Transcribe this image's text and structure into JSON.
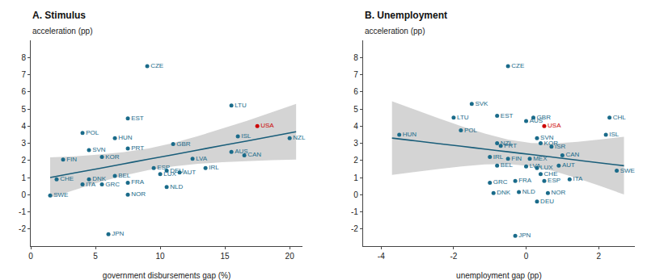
{
  "chart_data": [
    {
      "type": "scatter",
      "title": "A. Stimulus",
      "x_label": "government disbursements gap (%)",
      "y_label": "acceleration (pp)",
      "xlim": [
        0,
        21
      ],
      "ylim": [
        -3,
        9
      ],
      "xticks": [
        0,
        5,
        10,
        15,
        20
      ],
      "yticks": [
        -2,
        -1,
        0,
        1,
        2,
        3,
        4,
        5,
        6,
        7,
        8
      ],
      "grid": false,
      "labels": [
        "SWE",
        "FIN",
        "CHE",
        "ITA",
        "DNK",
        "POL",
        "SVN",
        "KOR",
        "GRC",
        "BEL",
        "HUN",
        "EST",
        "PRT",
        "FRA",
        "NOR",
        "CZE",
        "ESP",
        "DEU",
        "LUX",
        "GBR",
        "NLD",
        "AUT",
        "LVA",
        "IRL",
        "LTU",
        "AUS",
        "CAN",
        "ISL",
        "USA",
        "NZL",
        "JPN"
      ],
      "x": [
        1.5,
        2.5,
        2.0,
        4.0,
        4.5,
        4.0,
        4.5,
        5.5,
        5.5,
        6.5,
        6.5,
        7.5,
        7.5,
        7.5,
        7.5,
        9.0,
        9.5,
        10.5,
        10.0,
        11.0,
        10.5,
        11.5,
        12.5,
        13.5,
        15.5,
        15.5,
        16.5,
        16.0,
        17.5,
        20.0,
        6.0
      ],
      "values": [
        -0.05,
        2.05,
        0.9,
        0.6,
        0.9,
        3.6,
        2.6,
        2.2,
        0.6,
        1.1,
        3.3,
        4.45,
        2.7,
        0.7,
        0.0,
        7.5,
        1.55,
        1.4,
        1.2,
        2.95,
        0.45,
        1.3,
        2.1,
        1.55,
        5.2,
        2.5,
        2.3,
        3.4,
        4.0,
        3.3,
        -2.3
      ],
      "colors": [
        "#1a6b8a",
        "#1a6b8a",
        "#1a6b8a",
        "#1a6b8a",
        "#1a6b8a",
        "#1a6b8a",
        "#1a6b8a",
        "#1a6b8a",
        "#1a6b8a",
        "#1a6b8a",
        "#1a6b8a",
        "#1a6b8a",
        "#1a6b8a",
        "#1a6b8a",
        "#1a6b8a",
        "#1a6b8a",
        "#1a6b8a",
        "#1a6b8a",
        "#1a6b8a",
        "#1a6b8a",
        "#1a6b8a",
        "#1a6b8a",
        "#1a6b8a",
        "#1a6b8a",
        "#1a6b8a",
        "#1a6b8a",
        "#1a6b8a",
        "#1a6b8a",
        "#cc0000",
        "#1a6b8a",
        "#1a6b8a"
      ],
      "fit": {
        "type": "line",
        "color": "#1a5e7a",
        "x": [
          1.5,
          3.4,
          5.3,
          7.2,
          9.1,
          11.0,
          12.9,
          14.8,
          16.7,
          18.6,
          20.5
        ],
        "values": [
          1.0,
          1.27,
          1.53,
          1.8,
          2.07,
          2.33,
          2.6,
          2.87,
          3.13,
          3.4,
          3.67
        ]
      },
      "band": {
        "type": "area",
        "color": "#b0b0b0",
        "x": [
          1.5,
          3.4,
          5.3,
          7.2,
          9.1,
          11.0,
          12.9,
          14.8,
          16.7,
          18.6,
          20.5
        ],
        "lower": [
          -0.18,
          0.29,
          0.73,
          1.12,
          1.43,
          1.65,
          1.8,
          1.89,
          1.96,
          2.01,
          2.05
        ],
        "upper": [
          2.18,
          2.24,
          2.34,
          2.48,
          2.7,
          3.01,
          3.41,
          3.85,
          4.31,
          4.8,
          5.29
        ]
      }
    },
    {
      "type": "scatter",
      "title": "B. Unemployment",
      "x_label": "unemployment gap (pp)",
      "y_label": "acceleration (pp)",
      "xlim": [
        -4.5,
        3.0
      ],
      "ylim": [
        -3,
        9
      ],
      "xticks": [
        -4,
        -2,
        0,
        2
      ],
      "yticks": [
        -2,
        -1,
        0,
        1,
        2,
        3,
        4,
        5,
        6,
        7,
        8
      ],
      "grid": false,
      "labels": [
        "HUN",
        "LTU",
        "SVK",
        "CZE",
        "POL",
        "EST",
        "NZL",
        "PRT",
        "IRL",
        "FIN",
        "BEL",
        "GRC",
        "DNK",
        "FRA",
        "NLD",
        "LVA",
        "MEX",
        "LUX",
        "CHE",
        "ESP",
        "DEU",
        "NOR",
        "AUS",
        "GBR",
        "SVN",
        "KOR",
        "ISR",
        "AUT",
        "CAN",
        "ITA",
        "USA",
        "CHL",
        "ISL",
        "SWE",
        "JPN"
      ],
      "x": [
        -3.5,
        -2.0,
        -1.5,
        -0.5,
        -1.8,
        -0.8,
        -0.8,
        -0.7,
        -1.0,
        -0.5,
        -0.8,
        -1.0,
        -0.9,
        -0.3,
        -0.2,
        0.0,
        0.1,
        0.3,
        0.4,
        0.5,
        0.3,
        0.6,
        0.0,
        0.2,
        0.3,
        0.4,
        0.7,
        0.9,
        1.0,
        1.2,
        0.5,
        2.3,
        2.2,
        2.5,
        -0.3
      ],
      "values": [
        3.5,
        4.5,
        5.3,
        7.5,
        3.75,
        4.6,
        3.0,
        2.85,
        2.2,
        2.1,
        1.7,
        0.7,
        0.1,
        0.8,
        0.15,
        1.65,
        2.1,
        1.55,
        1.2,
        0.8,
        -0.4,
        0.1,
        4.3,
        4.5,
        3.3,
        3.0,
        2.8,
        1.7,
        2.3,
        0.9,
        4.0,
        4.5,
        3.5,
        1.4,
        -2.4
      ],
      "colors": [
        "#1a6b8a",
        "#1a6b8a",
        "#1a6b8a",
        "#1a6b8a",
        "#1a6b8a",
        "#1a6b8a",
        "#1a6b8a",
        "#1a6b8a",
        "#1a6b8a",
        "#1a6b8a",
        "#1a6b8a",
        "#1a6b8a",
        "#1a6b8a",
        "#1a6b8a",
        "#1a6b8a",
        "#1a6b8a",
        "#1a6b8a",
        "#1a6b8a",
        "#1a6b8a",
        "#1a6b8a",
        "#1a6b8a",
        "#1a6b8a",
        "#1a6b8a",
        "#1a6b8a",
        "#1a6b8a",
        "#1a6b8a",
        "#1a6b8a",
        "#1a6b8a",
        "#1a6b8a",
        "#1a6b8a",
        "#cc0000",
        "#1a6b8a",
        "#1a6b8a",
        "#1a6b8a",
        "#1a6b8a"
      ],
      "fit": {
        "type": "line",
        "color": "#1a5e7a",
        "x": [
          -3.7,
          -3.06,
          -2.42,
          -1.78,
          -1.14,
          -0.5,
          0.14,
          0.78,
          1.42,
          2.06,
          2.7
        ],
        "values": [
          3.3,
          3.14,
          2.98,
          2.82,
          2.66,
          2.5,
          2.34,
          2.18,
          2.01,
          1.85,
          1.69
        ]
      },
      "band": {
        "type": "area",
        "color": "#b0b0b0",
        "x": [
          -3.7,
          -3.06,
          -2.42,
          -1.78,
          -1.14,
          -0.5,
          0.14,
          0.78,
          1.42,
          2.06,
          2.7
        ],
        "lower": [
          1.15,
          1.33,
          1.5,
          1.65,
          1.76,
          1.79,
          1.66,
          1.36,
          0.95,
          0.49,
          0.01
        ],
        "upper": [
          5.45,
          4.95,
          4.46,
          3.99,
          3.56,
          3.21,
          3.01,
          2.99,
          3.08,
          3.22,
          3.38
        ]
      }
    }
  ]
}
